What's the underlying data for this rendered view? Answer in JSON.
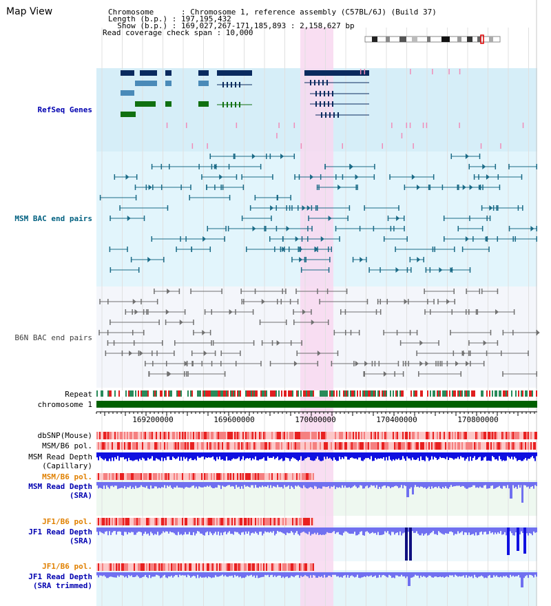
{
  "view_title": "Map View",
  "info": {
    "chromosome_line": "Chromosome      : Chromosome 1, reference assembly (C57BL/6J) (Build 37)",
    "length_line": "Length (b.p.) : 197,195,432",
    "show_line": "  Show (b.p.) : 169,027,267-171,185,893 : 2,158,627 bp",
    "coverage_line": "Read coverage check span : 10,000"
  },
  "tracks": {
    "refseq": "RefSeq Genes",
    "msm_bac": "MSM BAC end pairs",
    "b6n_bac": "B6N BAC end pairs",
    "repeat": "Repeat",
    "chromosome": "chromosome 1",
    "dbsnp": "dbSNP(Mouse)",
    "msm_b6_pol_1": "MSM/B6 pol.",
    "msm_read_depth_cap_1": "MSM Read Depth",
    "msm_read_depth_cap_2": "(Capillary)",
    "msm_b6_pol_2": "MSM/B6 pol.",
    "msm_read_depth_sra_1": "MSM Read Depth",
    "msm_read_depth_sra_2": "(SRA)",
    "jf1_b6_pol_1": "JF1/B6 pol.",
    "jf1_read_depth_sra_1": "JF1 Read Depth",
    "jf1_read_depth_sra_2": "(SRA)",
    "jf1_b6_pol_2": "JF1/B6 pol.",
    "jf1_read_depth_trim_1": "JF1 Read Depth",
    "jf1_read_depth_trim_2": "(SRA trimmed)"
  },
  "axis_ticks": [
    "169200000",
    "169600000",
    "170000000",
    "170400000",
    "170800000"
  ],
  "colors": {
    "refseq_bg": "#d6eef8",
    "msm_bg": "#e2f5fc",
    "b6n_bg": "#f4f6fb",
    "highlight": "#f8d8f0",
    "refseq_label": "#0000b0",
    "msm_label": "#006080",
    "b6n_label": "#404040",
    "pol_label": "#e08000",
    "depth_label": "#0000b0",
    "repeat_red": "#e02020",
    "chromosome_green": "#006000",
    "depth_blue": "#1010e0",
    "depth_light_blue": "#7070f0"
  }
}
